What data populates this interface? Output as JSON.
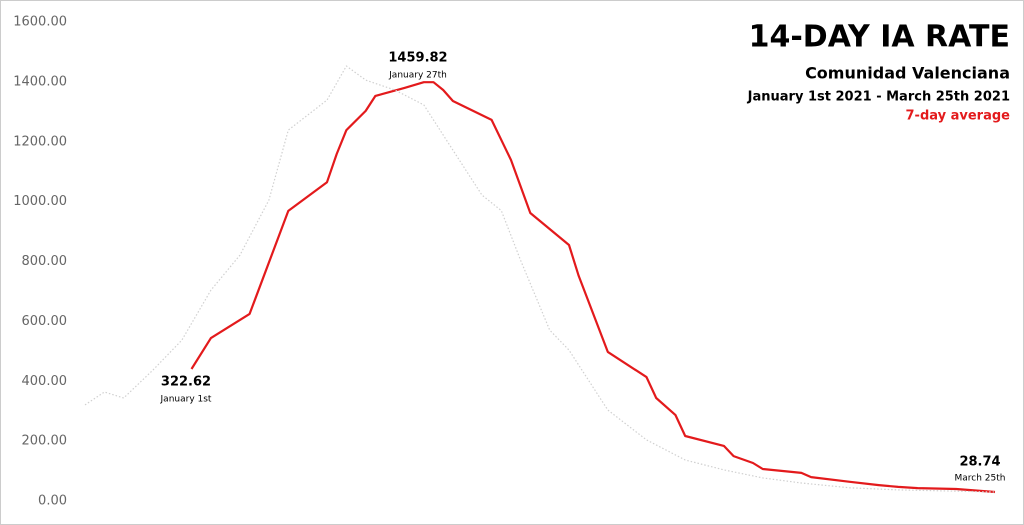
{
  "chart_data": {
    "type": "line",
    "title": "14-DAY IA RATE",
    "subtitle": "Comunidad Valenciana",
    "date_range": "January 1st 2021 - March 25th 2021",
    "xlim": [
      -11,
      83
    ],
    "ylim": [
      0,
      1600
    ],
    "yticks": [
      {
        "value": 0,
        "label": "0.00"
      },
      {
        "value": 200,
        "label": "200.00"
      },
      {
        "value": 400,
        "label": "400.00"
      },
      {
        "value": 600,
        "label": "600.00"
      },
      {
        "value": 800,
        "label": "800.00"
      },
      {
        "value": 1000,
        "label": "1000.00"
      },
      {
        "value": 1200,
        "label": "1200.00"
      },
      {
        "value": 1400,
        "label": "1400.00"
      },
      {
        "value": 1600,
        "label": "1600.00"
      }
    ],
    "grid": false,
    "series": [
      {
        "name": "7-day average",
        "color": "#e31a1c",
        "style": "solid",
        "x": [
          0,
          2,
          6,
          10,
          14,
          15,
          16,
          18,
          19,
          22,
          24,
          25,
          26,
          27,
          31,
          33,
          35,
          39,
          40,
          43,
          47,
          48,
          50,
          51,
          55,
          56,
          58,
          59,
          63,
          64,
          68,
          71,
          73,
          75,
          79,
          83
        ],
        "values": [
          441,
          544,
          625,
          969,
          1065,
          1159,
          1239,
          1303,
          1353,
          1380,
          1399,
          1399,
          1373,
          1336,
          1273,
          1139,
          962,
          855,
          752,
          498,
          414,
          344,
          287,
          217,
          184,
          150,
          127,
          107,
          94,
          80,
          64,
          53,
          47,
          43,
          40,
          30
        ]
      },
      {
        "color": "#d0d0d0",
        "style": "dotted",
        "x": [
          -11,
          -9,
          -7,
          -4,
          -1,
          2,
          5,
          8,
          10,
          14,
          16,
          18,
          21,
          24,
          27,
          30,
          32,
          34,
          37,
          39,
          43,
          47,
          51,
          55,
          59,
          63,
          68,
          73,
          83
        ],
        "values": [
          321,
          364,
          344,
          437,
          537,
          704,
          821,
          1005,
          1239,
          1339,
          1453,
          1406,
          1373,
          1323,
          1172,
          1022,
          970,
          804,
          571,
          504,
          304,
          204,
          137,
          104,
          77,
          60,
          44,
          37,
          30
        ]
      }
    ],
    "annotations": [
      {
        "value": "322.62",
        "date": "January 1st"
      },
      {
        "value": "1459.82",
        "date": "January 27th"
      },
      {
        "value": "28.74",
        "date": "March 25th"
      }
    ]
  }
}
